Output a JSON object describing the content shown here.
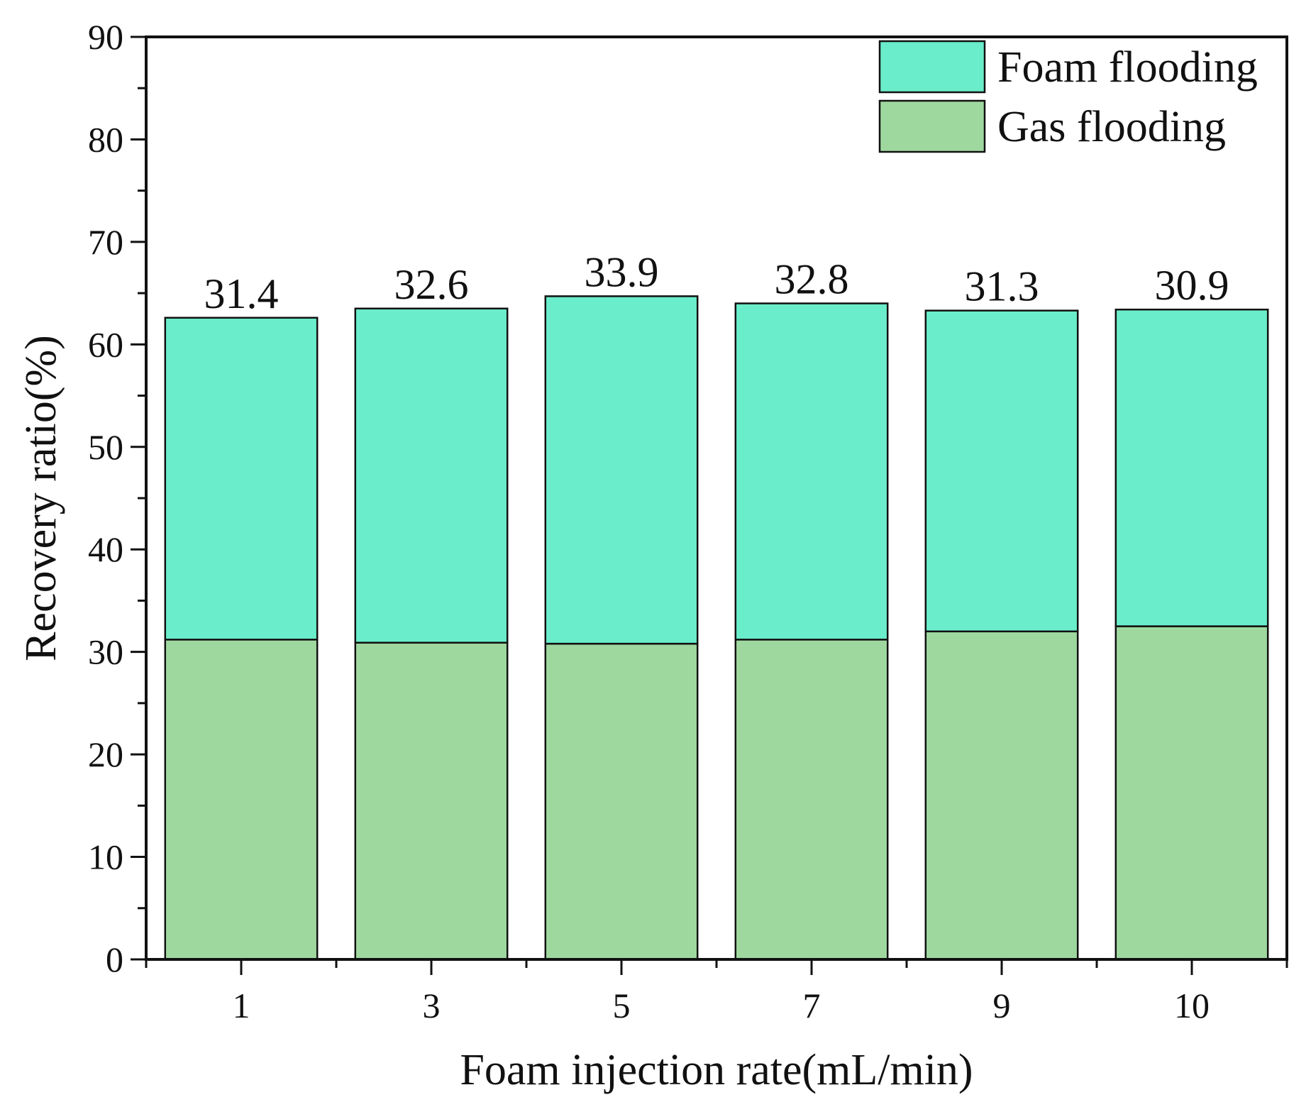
{
  "chart_data": {
    "type": "bar",
    "stacked": true,
    "categories": [
      "1",
      "3",
      "5",
      "7",
      "9",
      "10"
    ],
    "series": [
      {
        "name": "Gas flooding",
        "color": "#9fd89f",
        "values": [
          31.2,
          30.9,
          30.8,
          31.2,
          32.0,
          32.5
        ]
      },
      {
        "name": "Foam flooding",
        "color": "#6aedca",
        "values": [
          31.4,
          32.6,
          33.9,
          32.8,
          31.3,
          30.9
        ]
      }
    ],
    "data_labels": [
      "31.4",
      "32.6",
      "33.9",
      "32.8",
      "31.3",
      "30.9"
    ],
    "title": "",
    "xlabel": "Foam injection rate(mL/min)",
    "ylabel": "Recovery ratio(%)",
    "ylim": [
      0,
      90
    ],
    "yticks": [
      0,
      10,
      20,
      30,
      40,
      50,
      60,
      70,
      80,
      90
    ],
    "ytick_labels": [
      "0",
      "10",
      "20",
      "30",
      "40",
      "50",
      "60",
      "70",
      "80",
      "90"
    ],
    "legend": {
      "position": "top-right",
      "entries": [
        {
          "label": "Foam flooding",
          "color": "#6aedca"
        },
        {
          "label": "Gas flooding",
          "color": "#9fd89f"
        }
      ]
    },
    "grid": false
  }
}
